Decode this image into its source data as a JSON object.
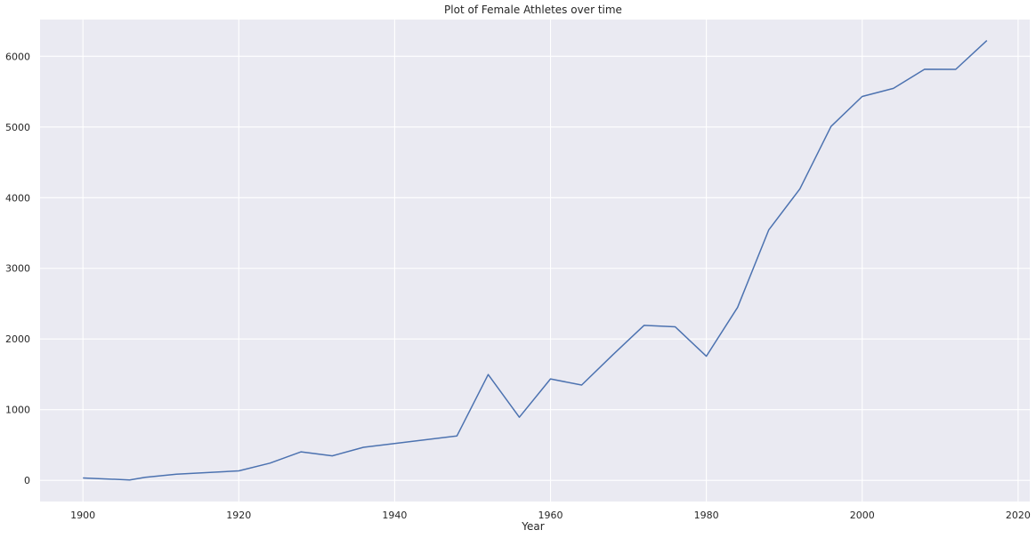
{
  "chart_data": {
    "type": "line",
    "title": "Plot of Female Athletes over time",
    "xlabel": "Year",
    "ylabel": "",
    "xlim": [
      1894.5,
      2021.5
    ],
    "ylim": [
      -300,
      6520
    ],
    "xticks": [
      1900,
      1920,
      1940,
      1960,
      1980,
      2000,
      2020
    ],
    "xtick_labels": [
      "1900",
      "1920",
      "1940",
      "1960",
      "1980",
      "2000",
      "2020"
    ],
    "yticks": [
      0,
      1000,
      2000,
      3000,
      4000,
      5000,
      6000
    ],
    "ytick_labels": [
      "0",
      "1000",
      "2000",
      "3000",
      "4000",
      "5000",
      "6000"
    ],
    "grid": true,
    "legend": "none",
    "colors": {
      "plot_background": "#eaeaf2",
      "grid": "#ffffff",
      "line": "#4c72b0"
    },
    "series": [
      {
        "x": [
          1900,
          1906,
          1908,
          1912,
          1920,
          1924,
          1928,
          1932,
          1936,
          1948,
          1952,
          1956,
          1960,
          1964,
          1968,
          1972,
          1976,
          1980,
          1984,
          1988,
          1992,
          1996,
          2000,
          2004,
          2008,
          2012,
          2016
        ],
        "y": [
          33,
          6,
          44,
          87,
          134,
          244,
          404,
          347,
          468,
          628,
          1497,
          893,
          1435,
          1348,
          1777,
          2193,
          2172,
          1756,
          2447,
          3543,
          4124,
          5008,
          5431,
          5546,
          5816,
          5815,
          6223
        ]
      }
    ]
  }
}
